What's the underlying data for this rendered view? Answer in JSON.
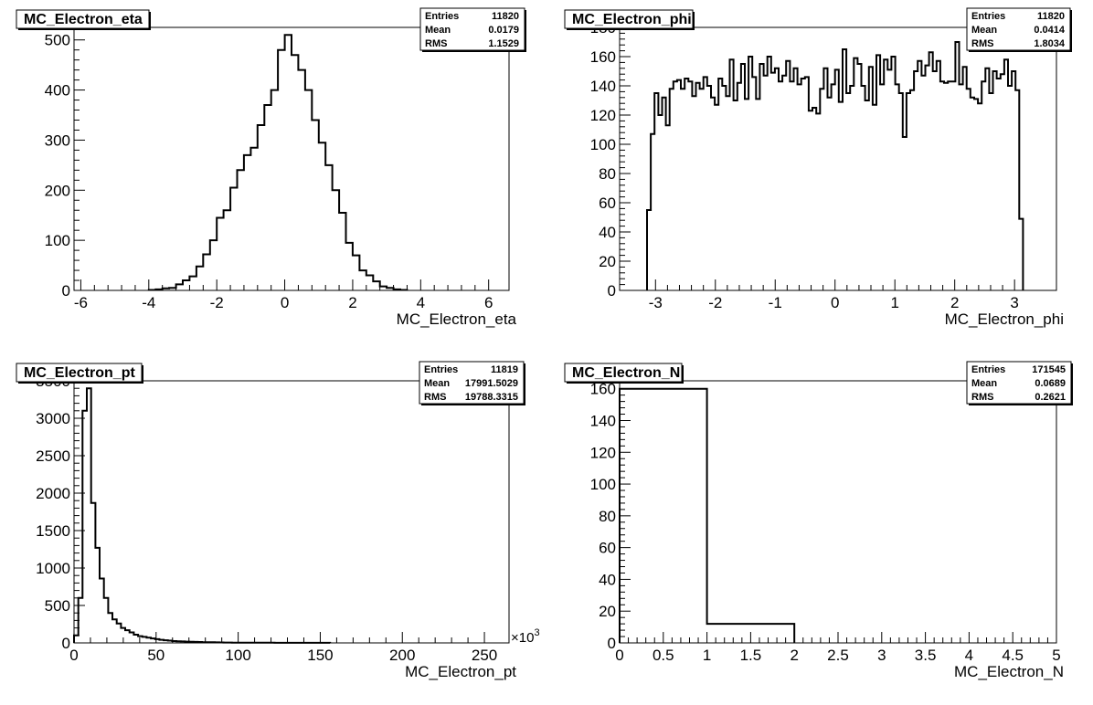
{
  "chart_data": [
    {
      "type": "histogram",
      "title": "MC_Electron_eta",
      "xlabel": "MC_Electron_eta",
      "xlim": [
        -6.2,
        6.6
      ],
      "ylim": [
        0,
        525
      ],
      "xticks": [
        -6,
        -4,
        -2,
        0,
        2,
        4,
        6
      ],
      "yticks": [
        0,
        100,
        200,
        300,
        400,
        500
      ],
      "stats": {
        "entries": "11820",
        "mean": "0.0179",
        "rms": "1.1529"
      },
      "bins": [
        [
          -4.0,
          -3.8,
          1
        ],
        [
          -3.8,
          -3.6,
          2
        ],
        [
          -3.6,
          -3.4,
          4
        ],
        [
          -3.4,
          -3.2,
          5
        ],
        [
          -3.2,
          -3.0,
          12
        ],
        [
          -3.0,
          -2.8,
          20
        ],
        [
          -2.8,
          -2.6,
          28
        ],
        [
          -2.6,
          -2.4,
          48
        ],
        [
          -2.4,
          -2.2,
          72
        ],
        [
          -2.2,
          -2.0,
          100
        ],
        [
          -2.0,
          -1.8,
          145
        ],
        [
          -1.8,
          -1.6,
          160
        ],
        [
          -1.6,
          -1.4,
          205
        ],
        [
          -1.4,
          -1.2,
          240
        ],
        [
          -1.2,
          -1.0,
          270
        ],
        [
          -1.0,
          -0.8,
          285
        ],
        [
          -0.8,
          -0.6,
          330
        ],
        [
          -0.6,
          -0.4,
          370
        ],
        [
          -0.4,
          -0.2,
          400
        ],
        [
          -0.2,
          0.0,
          480
        ],
        [
          0.0,
          0.2,
          510
        ],
        [
          0.2,
          0.4,
          470
        ],
        [
          0.4,
          0.6,
          440
        ],
        [
          0.6,
          0.8,
          400
        ],
        [
          0.8,
          1.0,
          340
        ],
        [
          1.0,
          1.2,
          295
        ],
        [
          1.2,
          1.4,
          250
        ],
        [
          1.4,
          1.6,
          200
        ],
        [
          1.6,
          1.8,
          155
        ],
        [
          1.8,
          2.0,
          95
        ],
        [
          2.0,
          2.2,
          70
        ],
        [
          2.2,
          2.4,
          40
        ],
        [
          2.4,
          2.6,
          30
        ],
        [
          2.6,
          2.8,
          18
        ],
        [
          2.8,
          3.0,
          8
        ],
        [
          3.0,
          3.2,
          5
        ],
        [
          3.2,
          3.4,
          2
        ],
        [
          3.4,
          3.6,
          1
        ]
      ]
    },
    {
      "type": "histogram",
      "title": "MC_Electron_phi",
      "xlabel": "MC_Electron_phi",
      "xlim": [
        -3.6,
        3.7
      ],
      "ylim": [
        0,
        180
      ],
      "xticks": [
        -3,
        -2,
        -1,
        0,
        1,
        2,
        3
      ],
      "yticks": [
        0,
        20,
        40,
        60,
        80,
        100,
        120,
        140,
        160,
        180
      ],
      "stats": {
        "entries": "11820",
        "mean": "0.0414",
        "rms": "1.8034"
      },
      "phi_values": [
        55,
        107,
        135,
        120,
        132,
        113,
        138,
        143,
        144,
        138,
        145,
        143,
        133,
        142,
        138,
        146,
        140,
        132,
        127,
        145,
        140,
        133,
        158,
        130,
        142,
        155,
        131,
        160,
        146,
        131,
        155,
        147,
        160,
        149,
        152,
        143,
        147,
        157,
        143,
        152,
        141,
        145,
        146,
        123,
        125,
        121,
        138,
        152,
        132,
        141,
        151,
        129,
        165,
        135,
        140,
        159,
        155,
        140,
        130,
        153,
        127,
        161,
        141,
        158,
        151,
        160,
        141,
        135,
        105,
        135,
        137,
        150,
        157,
        147,
        154,
        163,
        150,
        157,
        143,
        142,
        143,
        143,
        170,
        141,
        153,
        138,
        132,
        131,
        128,
        143,
        152,
        135,
        150,
        145,
        148,
        158,
        140,
        150,
        137,
        49
      ]
    },
    {
      "type": "histogram",
      "title": "MC_Electron_pt",
      "xlabel": "MC_Electron_pt",
      "x_exponent": "×10",
      "x_exponent_power": "3",
      "xlim": [
        0,
        265
      ],
      "ylim": [
        0,
        3500
      ],
      "xticks": [
        0,
        50,
        100,
        150,
        200,
        250
      ],
      "yticks": [
        0,
        500,
        1000,
        1500,
        2000,
        2500,
        3000,
        3500
      ],
      "stats": {
        "entries": "11819",
        "mean": "17991.5029",
        "rms": "19788.3315"
      },
      "pt_values": [
        100,
        600,
        3100,
        3400,
        1870,
        1270,
        860,
        600,
        400,
        315,
        260,
        200,
        170,
        140,
        110,
        90,
        80,
        70,
        60,
        50,
        42,
        35,
        30,
        25,
        22,
        20,
        17,
        15,
        13,
        12,
        10,
        9,
        8,
        7,
        6,
        5,
        5,
        4,
        4,
        3,
        3,
        3,
        2,
        2,
        2,
        2,
        2,
        1,
        1,
        1,
        1,
        1,
        1,
        1,
        1,
        1,
        1,
        1,
        1,
        1
      ],
      "pt_bin_width": 2.6
    },
    {
      "type": "histogram",
      "title": "MC_Electron_N",
      "xlabel": "MC_Electron_N",
      "xlim": [
        0,
        5
      ],
      "ylim": [
        0,
        165
      ],
      "xticks": [
        "0",
        "0.5",
        "1",
        "1.5",
        "2",
        "2.5",
        "3",
        "3.5",
        "4",
        "4.5",
        "5"
      ],
      "yticks": [
        0,
        20,
        40,
        60,
        80,
        100,
        120,
        140,
        160
      ],
      "stats": {
        "entries": "171545",
        "mean": "0.0689",
        "rms": "0.2621"
      },
      "bins": [
        [
          0,
          1,
          160
        ],
        [
          1,
          2,
          12
        ]
      ]
    }
  ],
  "stat_labels": {
    "entries": "Entries",
    "mean": "Mean",
    "rms": "RMS"
  }
}
